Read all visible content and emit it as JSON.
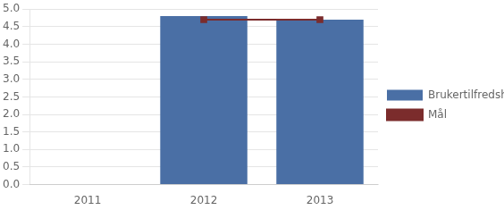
{
  "chart_data": {
    "type": "bar",
    "categories": [
      "2011",
      "2012",
      "2013"
    ],
    "series": [
      {
        "name": "Brukertilfredshet",
        "type": "bar",
        "color": "#4a6fa5",
        "values": [
          0,
          4.8,
          4.7
        ]
      },
      {
        "name": "Mål",
        "type": "line",
        "color": "#7B2C2C",
        "marker": "square",
        "values": [
          null,
          4.7,
          4.7
        ]
      }
    ],
    "ylim": [
      0,
      5.0
    ],
    "yticks": [
      {
        "value": 0,
        "label": "0.0"
      },
      0.5,
      {
        "value": 1,
        "label": "1.0"
      },
      1.5,
      {
        "value": 2,
        "label": "2.0"
      },
      2.5,
      {
        "value": 3,
        "label": "3.0"
      },
      3.5,
      {
        "value": 4,
        "label": "4.0"
      },
      4.5,
      {
        "value": 5,
        "label": "5.0"
      }
    ],
    "grid": true,
    "legend": "right"
  }
}
